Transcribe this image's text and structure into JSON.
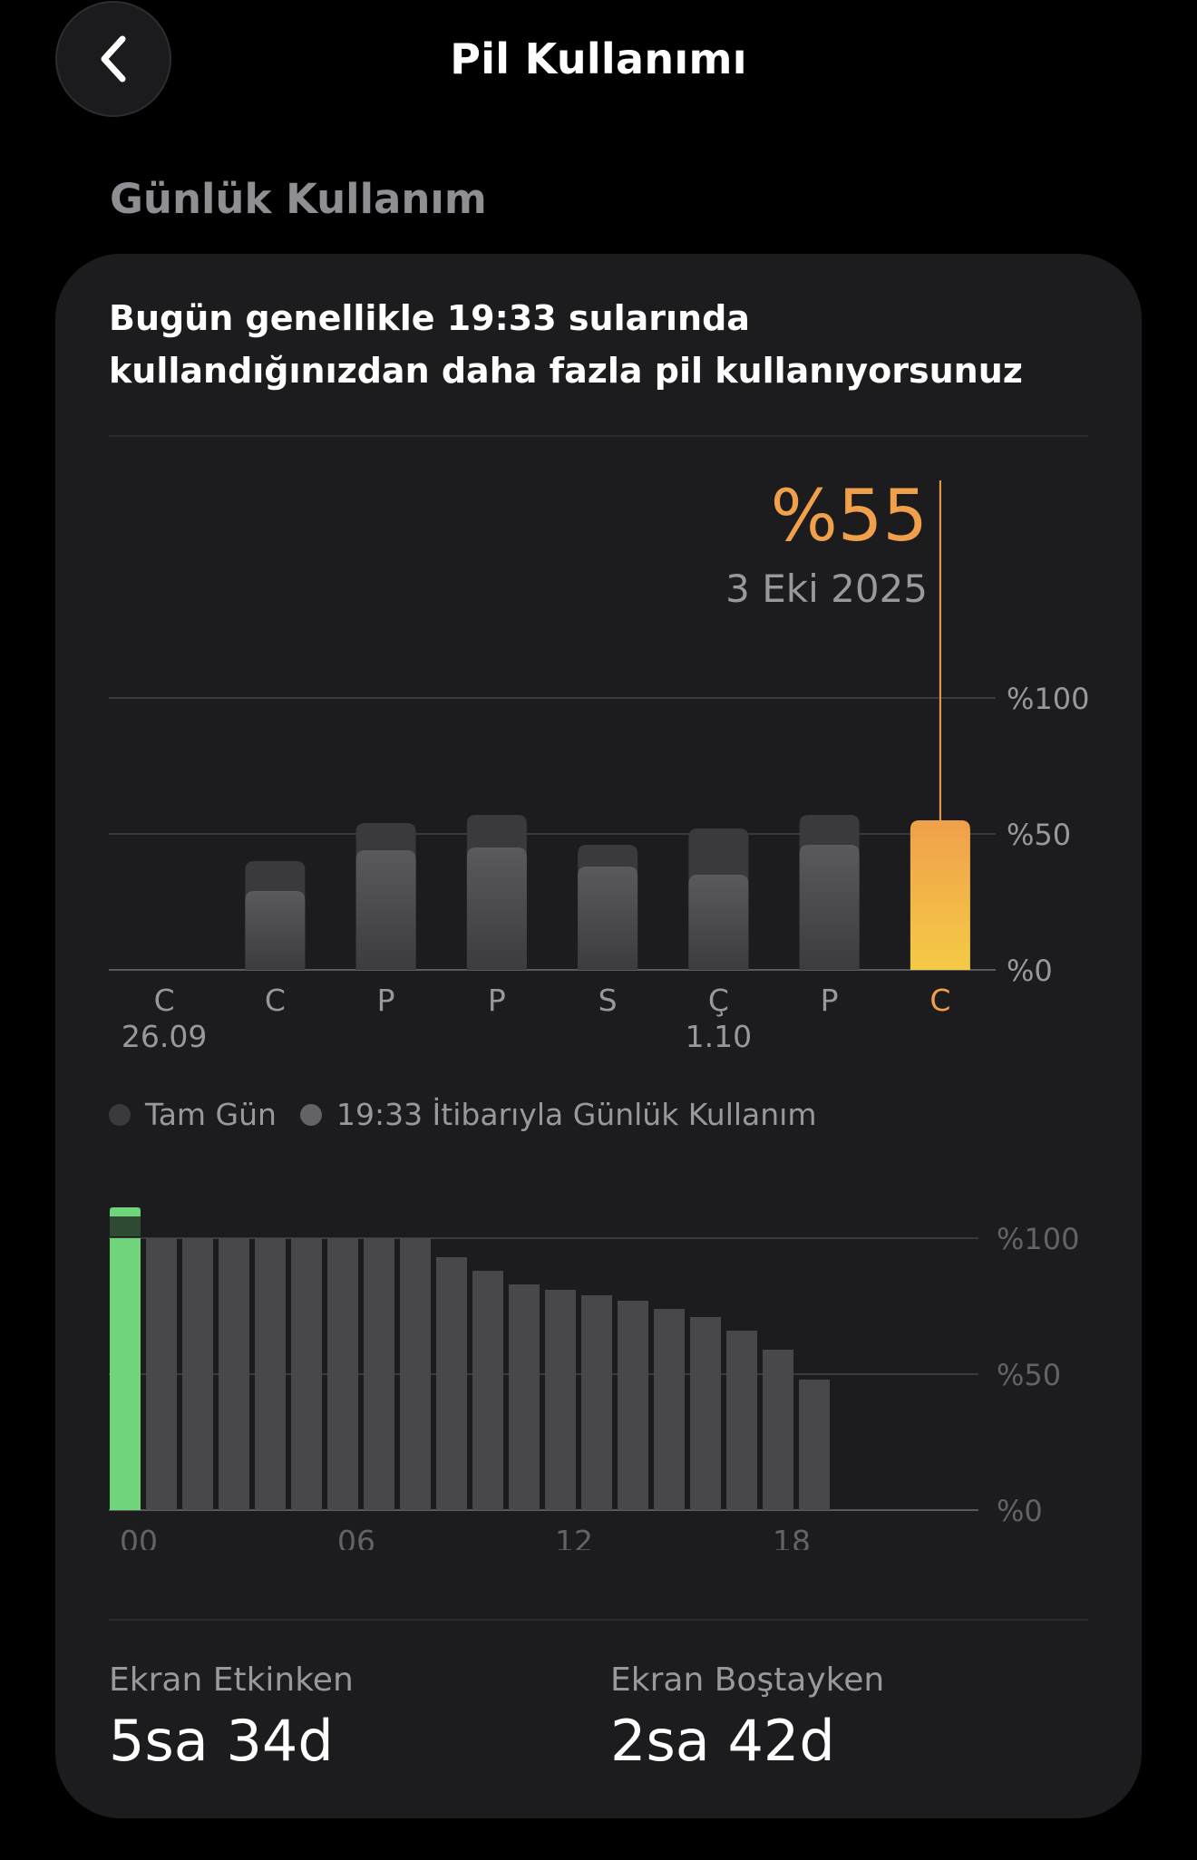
{
  "header": {
    "title": "Pil Kullanımı",
    "back_icon": "chevron-left-icon"
  },
  "section": {
    "title": "Günlük Kullanım"
  },
  "card": {
    "headline": "Bugün genellikle 19:33 sularında kullandığınızdan daha fazla pil kullanıyorsunuz",
    "selected_value": "%55",
    "selected_date": "3 Eki 2025",
    "legend": [
      {
        "label": "Tam Gün",
        "color": "#3a3a3c"
      },
      {
        "label": "19:33 İtibarıyla Günlük Kullanım",
        "color": "#636366"
      }
    ],
    "stats": [
      {
        "label": "Ekran Etkinken",
        "value": "5sa 34d"
      },
      {
        "label": "Ekran Boştayken",
        "value": "2sa 42d"
      }
    ]
  },
  "chart_data": [
    {
      "type": "bar",
      "categories": [
        "C",
        "C",
        "P",
        "P",
        "S",
        "Ç",
        "P",
        "C"
      ],
      "sublabels": [
        "26.09",
        "",
        "",
        "",
        "",
        "1.10",
        "",
        ""
      ],
      "series": [
        {
          "name": "Tam Gün",
          "values": [
            0,
            40,
            54,
            57,
            46,
            52,
            57,
            55
          ]
        },
        {
          "name": "19:33 İtibarıyla Günlük Kullanım",
          "values": [
            0,
            29,
            44,
            45,
            38,
            35,
            46,
            55
          ]
        }
      ],
      "selected_index": 7,
      "highlight_colors": [
        "#f5ca46",
        "#f0a04b"
      ],
      "yticks": [
        "%100",
        "%50",
        "%0"
      ],
      "ylim": [
        0,
        100
      ],
      "grid": true
    },
    {
      "type": "bar",
      "values": [
        100,
        100,
        100,
        100,
        100,
        100,
        100,
        100,
        100,
        93,
        88,
        83,
        81,
        79,
        77,
        74,
        71,
        66,
        59,
        48
      ],
      "charging": [
        true,
        false,
        false,
        false,
        false,
        false,
        false,
        false,
        false,
        false,
        false,
        false,
        false,
        false,
        false,
        false,
        false,
        false,
        false,
        false
      ],
      "overflow": [
        true,
        false,
        false,
        false,
        false,
        false,
        false,
        false,
        false,
        false,
        false,
        false,
        false,
        false,
        false,
        false,
        false,
        false,
        false,
        false
      ],
      "colors": {
        "bar": "#48484a",
        "charging": "#6fd47a"
      },
      "xticks": [
        "00",
        "06",
        "12",
        "18"
      ],
      "yticks": [
        "%100",
        "%50",
        "%0"
      ],
      "ylim": [
        0,
        100
      ],
      "grid": true
    }
  ]
}
